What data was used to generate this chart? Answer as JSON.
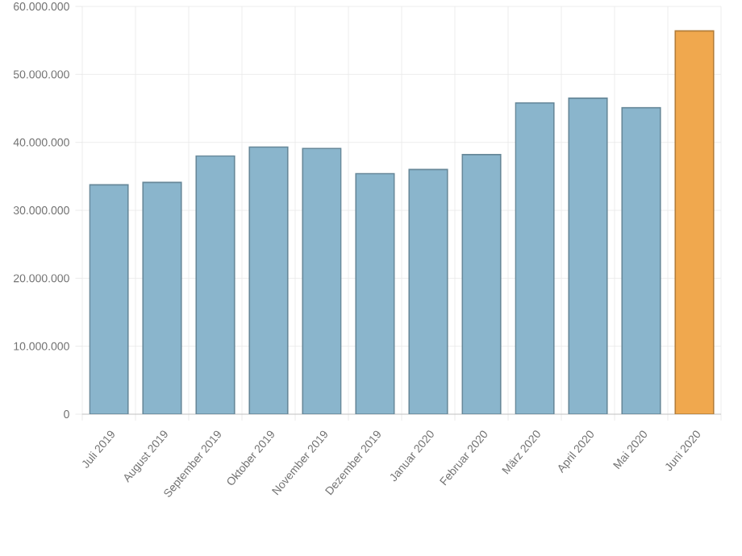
{
  "chart_data": {
    "type": "bar",
    "categories": [
      "Juli 2019",
      "August 2019",
      "September 2019",
      "Oktober 2019",
      "November 2019",
      "Dezember 2019",
      "Januar 2020",
      "Februar 2020",
      "März 2020",
      "April 2020",
      "Mai 2020",
      "Juni 2020"
    ],
    "values": [
      33750000,
      34100000,
      38000000,
      39300000,
      39100000,
      35400000,
      36000000,
      38200000,
      45800000,
      46500000,
      45100000,
      56400000
    ],
    "colors": [
      "#8ab5cc",
      "#8ab5cc",
      "#8ab5cc",
      "#8ab5cc",
      "#8ab5cc",
      "#8ab5cc",
      "#8ab5cc",
      "#8ab5cc",
      "#8ab5cc",
      "#8ab5cc",
      "#8ab5cc",
      "#f0a84e"
    ],
    "ylim": [
      0,
      60000000
    ],
    "yticks": [
      {
        "value": 0,
        "label": "0"
      },
      {
        "value": 10000000,
        "label": "10.000.000"
      },
      {
        "value": 20000000,
        "label": "20.000.000"
      },
      {
        "value": 30000000,
        "label": "30.000.000"
      },
      {
        "value": 40000000,
        "label": "40.000.000"
      },
      {
        "value": 50000000,
        "label": "50.000.000"
      },
      {
        "value": 60000000,
        "label": "60.000.000"
      }
    ],
    "grid": true
  }
}
